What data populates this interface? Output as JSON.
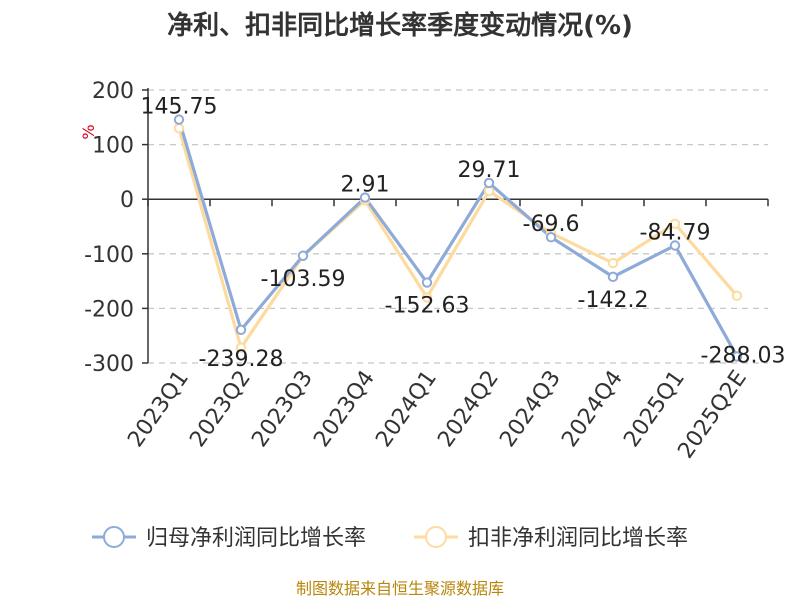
{
  "chart_data": {
    "type": "line",
    "title": "净利、扣非同比增长率季度变动情况(%)",
    "ylabel": "%",
    "categories": [
      "2023Q1",
      "2023Q2",
      "2023Q3",
      "2023Q4",
      "2024Q1",
      "2024Q2",
      "2024Q3",
      "2024Q4",
      "2025Q1",
      "2025Q2E"
    ],
    "ylim": [
      -300,
      200
    ],
    "yticks": [
      200,
      100,
      0,
      -100,
      -200,
      -300
    ],
    "ytick_labels": [
      "200",
      "100",
      "0",
      "-100",
      "-200",
      "-300"
    ],
    "grid": true,
    "legend_position": "bottom",
    "series": [
      {
        "name": "归母净利润同比增长率",
        "color": "#8eaad8",
        "values": [
          145.75,
          -239.28,
          -103.59,
          2.91,
          -152.63,
          29.71,
          -69.6,
          -142.2,
          -84.79,
          -288.03
        ],
        "labels": [
          "145.75",
          "-239.28",
          "-103.59",
          "2.91",
          "-152.63",
          "29.71",
          "-69.6",
          "-142.2",
          "-84.79",
          "-288.03"
        ]
      },
      {
        "name": "扣非净利润同比增长率",
        "color": "#fddb9f",
        "values": [
          130,
          -272,
          -104,
          -2,
          -180,
          15,
          -62,
          -117,
          -45,
          -177
        ]
      }
    ]
  },
  "source": "制图数据来自恒生聚源数据库"
}
